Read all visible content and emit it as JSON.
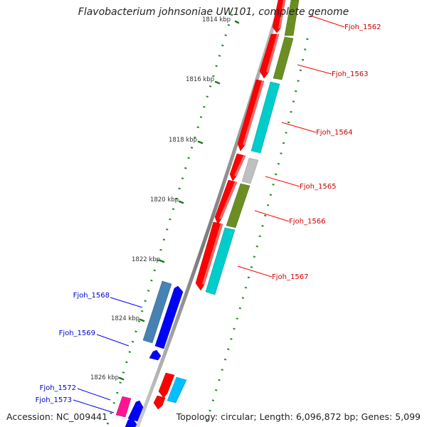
{
  "title": "Flavobacterium johnsoniae UW101, complete genome",
  "footer": {
    "accession": "Accession: NC_009441",
    "summary": "Topology: circular; Length: 6,096,872 bp; Genes: 5,099"
  },
  "ticks": [
    {
      "label": "1814 kbp"
    },
    {
      "label": "1816 kbp"
    },
    {
      "label": "1818 kbp"
    },
    {
      "label": "1820 kbp"
    },
    {
      "label": "1822 kbp"
    },
    {
      "label": "1824 kbp"
    },
    {
      "label": "1826 kbp"
    }
  ],
  "gene_labels": [
    {
      "name": "Fjoh_1562",
      "strand": "forward",
      "color": "#cc0000"
    },
    {
      "name": "Fjoh_1563",
      "strand": "forward",
      "color": "#cc0000"
    },
    {
      "name": "Fjoh_1564",
      "strand": "forward",
      "color": "#cc0000"
    },
    {
      "name": "Fjoh_1565",
      "strand": "forward",
      "color": "#cc0000"
    },
    {
      "name": "Fjoh_1566",
      "strand": "forward",
      "color": "#cc0000"
    },
    {
      "name": "Fjoh_1567",
      "strand": "forward",
      "color": "#cc0000"
    },
    {
      "name": "Fjoh_1568",
      "strand": "reverse",
      "color": "#0000cc"
    },
    {
      "name": "Fjoh_1569",
      "strand": "reverse",
      "color": "#0000cc"
    },
    {
      "name": "Fjoh_1572",
      "strand": "reverse",
      "color": "#0000cc"
    },
    {
      "name": "Fjoh_1573",
      "strand": "reverse",
      "color": "#0000cc"
    }
  ],
  "colors": {
    "cds_red": "#ff0000",
    "cds_blue": "#0000ff",
    "olive": "#6b8e23",
    "cyan": "#00cccc",
    "grey": "#bfbfbf",
    "steelblue": "#4682b4",
    "pink": "#ff1493",
    "skyblue": "#1e90ff",
    "backbone": "#8c8c8c",
    "tick_green": "#228b22"
  }
}
